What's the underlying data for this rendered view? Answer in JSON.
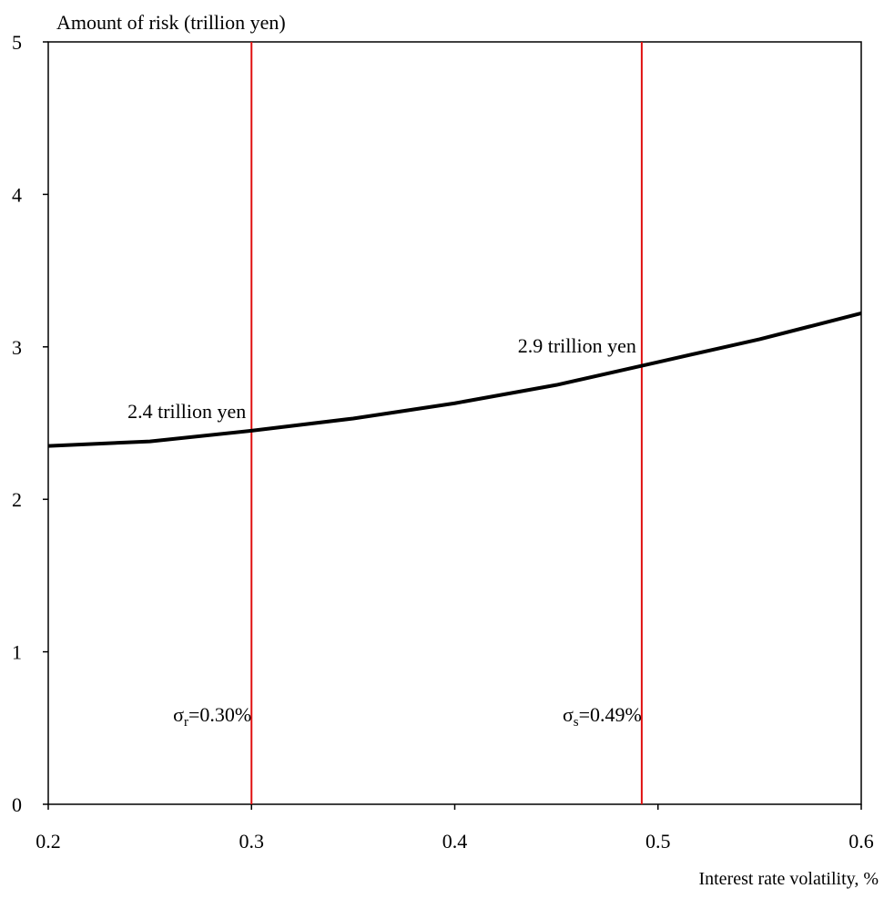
{
  "chart_data": {
    "type": "line",
    "ylabel": "Amount of risk (trillion yen)",
    "xlabel": "Interest rate volatility, %",
    "x": [
      0.2,
      0.25,
      0.3,
      0.35,
      0.4,
      0.45,
      0.5,
      0.55,
      0.6
    ],
    "series": [
      {
        "color": "#000000",
        "values": [
          2.35,
          2.38,
          2.45,
          2.53,
          2.63,
          2.75,
          2.9,
          3.05,
          3.22
        ]
      }
    ],
    "vlines": [
      {
        "x": 0.3,
        "color": "#e01010",
        "symbol": "σ",
        "sub": "r",
        "rest": "=0.30%"
      },
      {
        "x": 0.492,
        "color": "#e01010",
        "symbol": "σ",
        "sub": "s",
        "rest": "=0.49%"
      }
    ],
    "annotations": [
      {
        "text": "2.4 trillion yen",
        "x": 0.3,
        "y": 2.45
      },
      {
        "text": "2.9 trillion yen",
        "x": 0.492,
        "y": 2.88
      }
    ],
    "xlim": [
      0.2,
      0.6
    ],
    "xticks": [
      0.2,
      0.3,
      0.4,
      0.5,
      0.6
    ],
    "ylim": [
      0,
      5
    ],
    "yticks": [
      0,
      1,
      2,
      3,
      4,
      5
    ]
  }
}
